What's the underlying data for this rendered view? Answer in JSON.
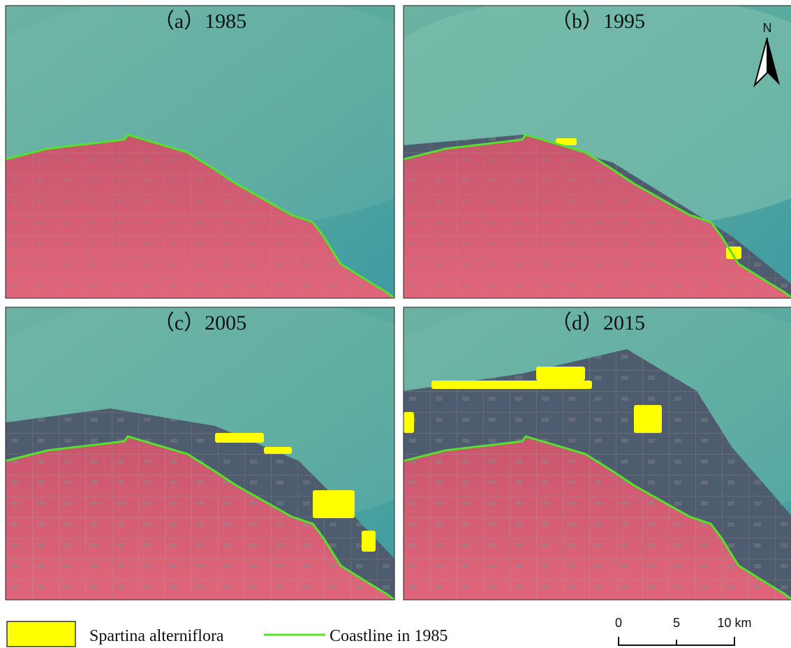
{
  "panels": [
    {
      "title": "（a）1985"
    },
    {
      "title": "（b）1995"
    },
    {
      "title": "（c）2005"
    },
    {
      "title": "（d）2015"
    }
  ],
  "north_arrow": "N",
  "legend": [
    {
      "label": "Spartina alterniflora"
    },
    {
      "label": "Coastline in 1985"
    }
  ],
  "scale_bar": {
    "labels": [
      "0",
      "5",
      "10 km"
    ]
  }
}
